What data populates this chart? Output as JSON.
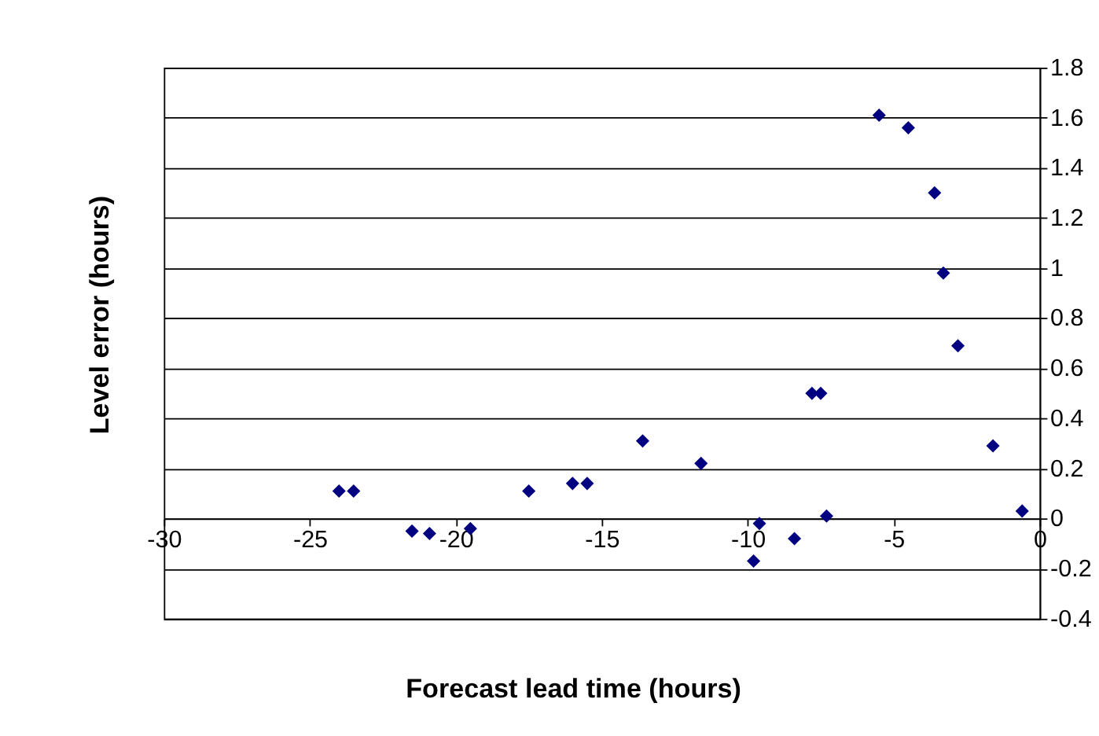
{
  "chart_data": {
    "type": "scatter",
    "xlabel": "Forecast lead time (hours)",
    "ylabel": "Level error (hours)",
    "x": [
      -24.0,
      -23.5,
      -21.5,
      -20.9,
      -19.5,
      -17.5,
      -16.0,
      -15.5,
      -13.6,
      -11.6,
      -9.8,
      -9.6,
      -8.4,
      -7.8,
      -7.5,
      -7.3,
      -5.5,
      -4.5,
      -3.6,
      -3.3,
      -2.8,
      -1.6,
      -0.6
    ],
    "series": [
      {
        "color": "#000080",
        "values": [
          0.11,
          0.11,
          -0.05,
          -0.06,
          -0.04,
          0.11,
          0.14,
          0.14,
          0.31,
          0.22,
          -0.17,
          -0.02,
          -0.08,
          0.5,
          0.5,
          0.01,
          1.61,
          1.56,
          1.3,
          0.98,
          0.69,
          0.29,
          0.03
        ]
      }
    ],
    "xlim": [
      -30,
      0
    ],
    "xticks": [
      -30,
      -25,
      -20,
      -15,
      -10,
      -5,
      0
    ],
    "ylim": [
      -0.4,
      1.8
    ],
    "yticks": [
      -0.4,
      -0.2,
      0,
      0.2,
      0.4,
      0.6,
      0.8,
      1,
      1.2,
      1.4,
      1.6,
      1.8
    ],
    "grid": "y",
    "marker": "diamond",
    "legend": false
  }
}
